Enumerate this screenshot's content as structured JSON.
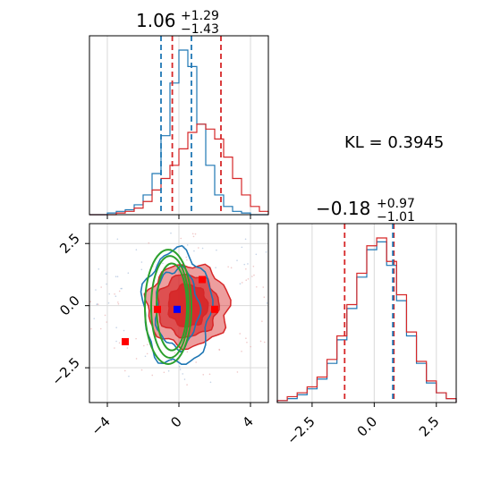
{
  "chart_data": [
    {
      "type": "histogram",
      "panel": "top-left",
      "title_main": "1.06",
      "title_sup": "+1.29",
      "title_sub": "−1.43",
      "xlim": [
        -5,
        5
      ],
      "xticks": [
        -4,
        0,
        4
      ],
      "grid": true,
      "series": [
        {
          "color": "#1f77b4",
          "bins": [
            -5,
            -4.5,
            -4,
            -3.5,
            -3,
            -2.5,
            -2,
            -1.5,
            -1,
            -0.5,
            0,
            0.5,
            1,
            1.5,
            2,
            2.5,
            3,
            3.5,
            4,
            4.5,
            5
          ],
          "counts": [
            0,
            0,
            1,
            2,
            3,
            6,
            12,
            25,
            48,
            80,
            100,
            90,
            55,
            30,
            12,
            5,
            2,
            1,
            0,
            0
          ]
        },
        {
          "color": "#d62728",
          "bins": [
            -5,
            -4.5,
            -4,
            -3.5,
            -3,
            -2.5,
            -2,
            -1.5,
            -1,
            -0.5,
            0,
            0.5,
            1,
            1.5,
            2,
            2.5,
            3,
            3.5,
            4,
            4.5,
            5
          ],
          "counts": [
            0,
            0,
            0,
            1,
            2,
            4,
            8,
            15,
            22,
            30,
            40,
            50,
            55,
            52,
            46,
            35,
            22,
            12,
            5,
            2
          ]
        }
      ],
      "quantile_lines": [
        {
          "color": "#1f77b4",
          "x": [
            -1.0,
            0.7
          ]
        },
        {
          "color": "#d62728",
          "x": [
            -0.37,
            2.35
          ]
        }
      ]
    },
    {
      "type": "contour",
      "panel": "bottom-left",
      "xlim": [
        -5,
        5
      ],
      "ylim": [
        -3.9,
        3.3
      ],
      "xticks": [
        -4,
        0,
        4
      ],
      "yticks": [
        2.5,
        0.0,
        -2.5
      ],
      "ytick_labels": [
        "2.5",
        "0.0",
        "−2.5"
      ],
      "xtick_labels": [
        "−4",
        "0",
        "4"
      ],
      "grid": true,
      "red_fill": {
        "color": "#d62728",
        "center": [
          0.5,
          0
        ],
        "sigmas": [
          2.3,
          1.7,
          1.1
        ],
        "ry": [
          1.65,
          1.25,
          0.85
        ]
      },
      "blue_contours": {
        "color": "#1f77b4",
        "center": [
          -0.1,
          -0.1
        ],
        "rx": [
          1.9,
          1.2
        ],
        "ry": [
          2.3,
          1.6
        ]
      },
      "green_ellipses": {
        "color": "#2ca02c",
        "center": [
          -0.6,
          -0.05
        ],
        "rx": [
          1.3,
          1.05,
          0.85
        ],
        "ry": [
          2.3,
          2.05,
          1.75
        ]
      },
      "red_markers": [
        [
          -1.2,
          -0.15
        ],
        [
          -3.0,
          -1.45
        ],
        [
          1.3,
          1.05
        ],
        [
          2.0,
          -0.15
        ]
      ],
      "blue_marker": [
        -0.1,
        -0.15
      ]
    },
    {
      "type": "histogram",
      "panel": "bottom-right",
      "title_main": "−0.18",
      "title_sup": "+0.97",
      "title_sub": "−1.01",
      "xlim": [
        -3.9,
        3.3
      ],
      "xticks": [
        -2.5,
        0.0,
        2.5
      ],
      "xtick_labels": [
        "−2.5",
        "0.0",
        "2.5"
      ],
      "grid": true,
      "series": [
        {
          "color": "#1f77b4",
          "bins": [
            -3.9,
            -3.5,
            -3.1,
            -2.7,
            -2.3,
            -1.9,
            -1.5,
            -1.1,
            -0.7,
            -0.3,
            0.1,
            0.5,
            0.9,
            1.3,
            1.7,
            2.1,
            2.5,
            2.9,
            3.3
          ],
          "counts": [
            1,
            2,
            4,
            7,
            12,
            20,
            32,
            48,
            64,
            78,
            82,
            70,
            52,
            34,
            20,
            10,
            5,
            2
          ]
        },
        {
          "color": "#d62728",
          "bins": [
            -3.9,
            -3.5,
            -3.1,
            -2.7,
            -2.3,
            -1.9,
            -1.5,
            -1.1,
            -0.7,
            -0.3,
            0.1,
            0.5,
            0.9,
            1.3,
            1.7,
            2.1,
            2.5,
            2.9,
            3.3
          ],
          "counts": [
            1,
            3,
            5,
            8,
            13,
            22,
            34,
            50,
            66,
            80,
            84,
            72,
            55,
            36,
            21,
            11,
            5,
            2
          ]
        }
      ],
      "quantile_lines": [
        {
          "color": "#d62728",
          "x": [
            -1.19,
            0.79
          ]
        },
        {
          "color": "#1f77b4",
          "x": [
            0.75
          ]
        }
      ]
    }
  ],
  "annotation": "KL = 0.3945"
}
